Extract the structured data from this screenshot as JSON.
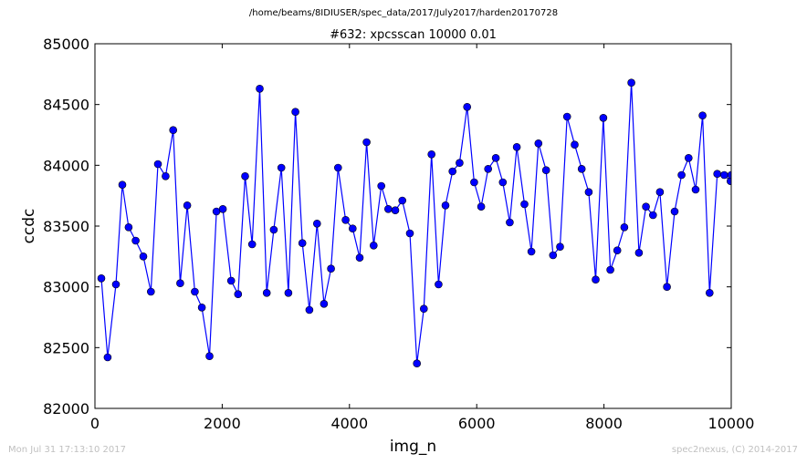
{
  "suptitle": "/home/beams/8IDIUSER/spec_data/2017/July2017/harden20170728",
  "footer": {
    "timestamp": "Mon Jul 31 17:13:10 2017",
    "credit": "spec2nexus, (C) 2014-2017"
  },
  "chart_data": {
    "type": "line",
    "title": "#632: xpcsscan 10000 0.01",
    "xlabel": "img_n",
    "ylabel": "ccdc",
    "xlim": [
      0,
      10000
    ],
    "ylim": [
      82000,
      85000
    ],
    "xticks": [
      0,
      2000,
      4000,
      6000,
      8000,
      10000
    ],
    "yticks": [
      82000,
      82500,
      83000,
      83500,
      84000,
      84500,
      85000
    ],
    "grid": false,
    "marker": "circle",
    "color": "#0000ff",
    "series": [
      {
        "x": [
          100,
          200,
          330,
          430,
          530,
          640,
          760,
          880,
          990,
          1110,
          1230,
          1340,
          1450,
          1570,
          1680,
          1800,
          1910,
          2010,
          2140,
          2250,
          2360,
          2470,
          2590,
          2700,
          2810,
          2930,
          3040,
          3150,
          3260,
          3370,
          3490,
          3600,
          3710,
          3820,
          3940,
          4050,
          4160,
          4270,
          4380,
          4500,
          4610,
          4720,
          4830,
          4950,
          5060,
          5170,
          5290,
          5400,
          5510,
          5620,
          5730,
          5850,
          5960,
          6070,
          6180,
          6300,
          6410,
          6520,
          6630,
          6750,
          6860,
          6970,
          7090,
          7200,
          7310,
          7420,
          7540,
          7650,
          7760,
          7870,
          7990,
          8100,
          8210,
          8320,
          8430,
          8550,
          8660,
          8770,
          8880,
          8990,
          9110,
          9220,
          9330,
          9440,
          9550,
          9660,
          9780,
          9890,
          9990,
          10000
        ],
        "y": [
          83070,
          82420,
          83020,
          83840,
          83490,
          83380,
          83250,
          82960,
          84010,
          83910,
          84290,
          83030,
          83670,
          82960,
          82830,
          82430,
          83620,
          83640,
          83050,
          82940,
          83910,
          83350,
          84630,
          82950,
          83470,
          83980,
          82950,
          84440,
          83360,
          82810,
          83520,
          82860,
          83150,
          83980,
          83550,
          83480,
          83240,
          84190,
          83340,
          83830,
          83640,
          83630,
          83710,
          83440,
          82370,
          82820,
          84090,
          83020,
          83670,
          83950,
          84020,
          84480,
          83860,
          83660,
          83970,
          84060,
          83860,
          83530,
          84150,
          83680,
          83290,
          84180,
          83960,
          83260,
          83330,
          84400,
          84170,
          83970,
          83780,
          83060,
          84390,
          83140,
          83300,
          83490,
          84680,
          83280,
          83660,
          83590,
          83780,
          83000,
          83620,
          83920,
          84060,
          83800,
          84410,
          82950,
          83930,
          83920,
          83870,
          83920
        ]
      }
    ]
  }
}
